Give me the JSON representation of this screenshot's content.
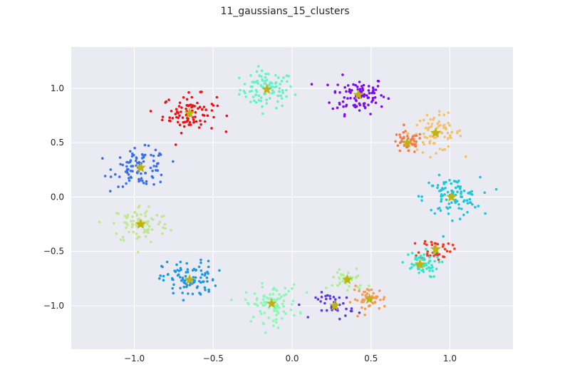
{
  "chart_data": {
    "type": "scatter",
    "title": "11_gaussians_15_clusters",
    "xlabel": "",
    "ylabel": "",
    "xlim": [
      -1.4,
      1.4
    ],
    "ylim": [
      -1.4,
      1.38
    ],
    "x_ticks": [
      -1.0,
      -0.5,
      0.0,
      0.5,
      1.0
    ],
    "x_tick_labels": [
      "−1.0",
      "−0.5",
      "0.0",
      "0.5",
      "1.0"
    ],
    "y_ticks": [
      -1.0,
      -0.5,
      0.0,
      0.5,
      1.0
    ],
    "y_tick_labels": [
      "−1.0",
      "−0.5",
      "0.0",
      "0.5",
      "1.0"
    ],
    "grid": true,
    "background": "#eaeaf2",
    "star_color": "#bdb312",
    "clusters": [
      {
        "center": [
          -0.16,
          0.99
        ],
        "color": "#5ff5c4",
        "spread": 0.085,
        "n": 95
      },
      {
        "center": [
          0.42,
          0.94
        ],
        "color": "#7b0cf0",
        "spread": 0.085,
        "n": 95
      },
      {
        "center": [
          -0.65,
          0.77
        ],
        "color": "#f01010",
        "spread": 0.085,
        "n": 90
      },
      {
        "center": [
          0.91,
          0.59
        ],
        "color": "#f0c26c",
        "spread": 0.085,
        "n": 85
      },
      {
        "center": [
          0.73,
          0.5
        ],
        "color": "#f8784a",
        "spread": 0.05,
        "n": 45
      },
      {
        "center": [
          -0.96,
          0.27
        ],
        "color": "#3a6fe8",
        "spread": 0.085,
        "n": 95
      },
      {
        "center": [
          1.01,
          0.0
        ],
        "color": "#1ec4d8",
        "spread": 0.09,
        "n": 95
      },
      {
        "center": [
          -0.96,
          -0.25
        ],
        "color": "#c2e68e",
        "spread": 0.09,
        "n": 90
      },
      {
        "center": [
          0.91,
          -0.48
        ],
        "color": "#f03a1a",
        "spread": 0.05,
        "n": 45
      },
      {
        "center": [
          0.81,
          -0.62
        ],
        "color": "#30e8c8",
        "spread": 0.06,
        "n": 55
      },
      {
        "center": [
          -0.65,
          -0.76
        ],
        "color": "#1e96e6",
        "spread": 0.085,
        "n": 95
      },
      {
        "center": [
          0.35,
          -0.76
        ],
        "color": "#a6f28e",
        "spread": 0.06,
        "n": 35
      },
      {
        "center": [
          -0.13,
          -0.98
        ],
        "color": "#82fcb0",
        "spread": 0.085,
        "n": 90
      },
      {
        "center": [
          0.49,
          -0.94
        ],
        "color": "#f89a52",
        "spread": 0.055,
        "n": 45
      },
      {
        "center": [
          0.27,
          -1.0
        ],
        "color": "#5a3ae0",
        "spread": 0.06,
        "n": 40
      }
    ]
  }
}
